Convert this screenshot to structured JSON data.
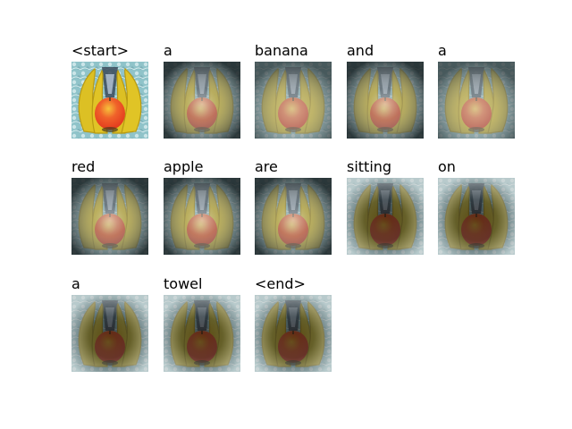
{
  "caption_words": [
    {
      "word": "<start>",
      "attention": "none"
    },
    {
      "word": "a",
      "attention": "center"
    },
    {
      "word": "banana",
      "attention": "lower"
    },
    {
      "word": "and",
      "attention": "center"
    },
    {
      "word": "a",
      "attention": "lower"
    },
    {
      "word": "red",
      "attention": "center"
    },
    {
      "word": "apple",
      "attention": "center"
    },
    {
      "word": "are",
      "attention": "center"
    },
    {
      "word": "sitting",
      "attention": "background"
    },
    {
      "word": "on",
      "attention": "background"
    },
    {
      "word": "a",
      "attention": "background"
    },
    {
      "word": "towel",
      "attention": "background"
    },
    {
      "word": "<end>",
      "attention": "background"
    }
  ],
  "colors": {
    "banana": "#e8cc2a",
    "banana_shade": "#b89a14",
    "apple": "#e23a1e",
    "apple_highlight": "#f6c23a",
    "towel": "#8fc3c9",
    "towel_pattern": "#d9eef0",
    "stem": "#4a3a1c",
    "attention_dark": "#1e2628"
  }
}
